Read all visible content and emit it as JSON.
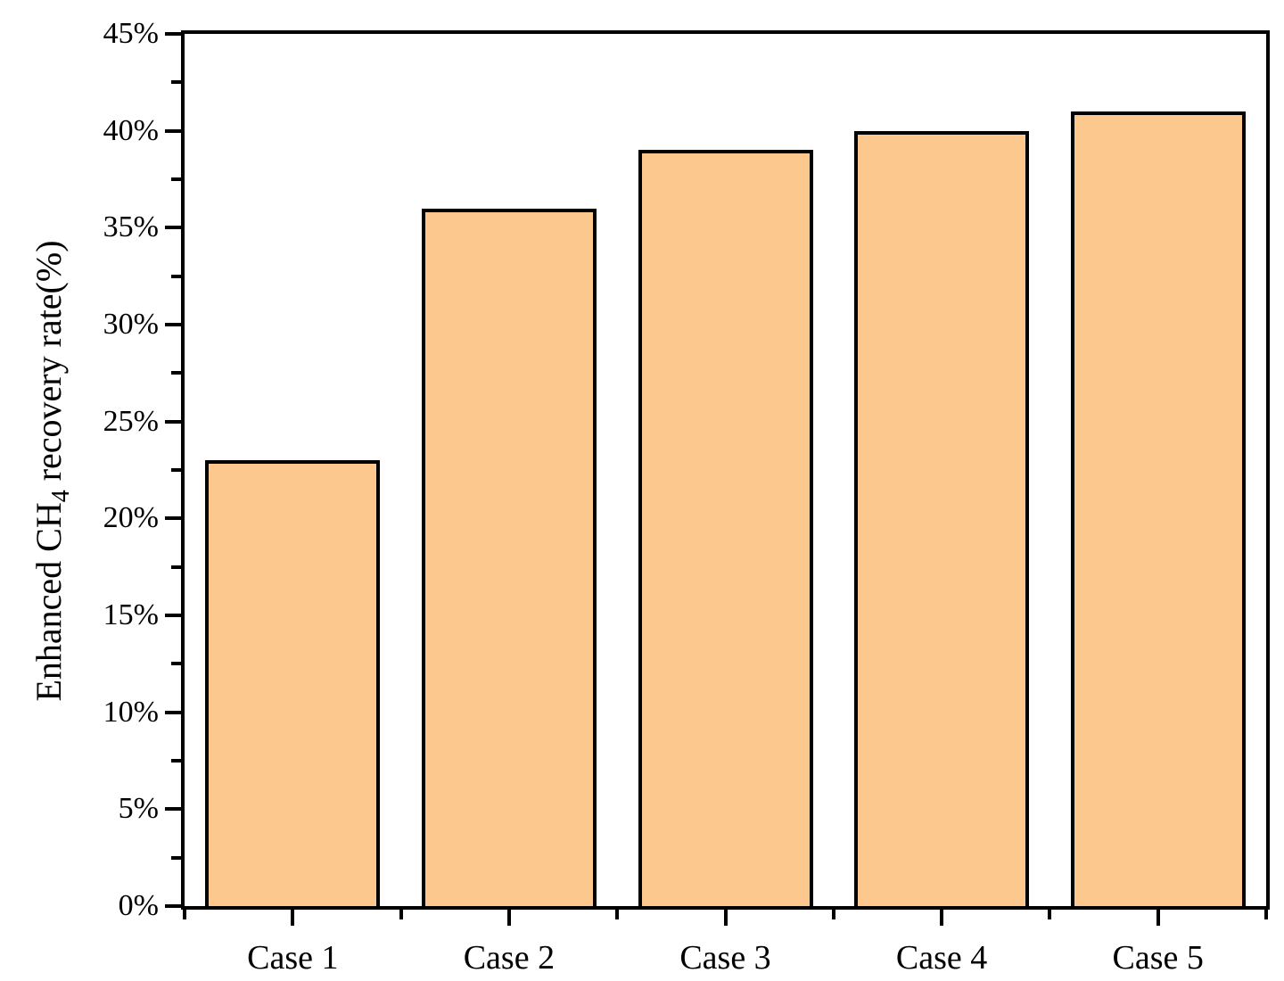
{
  "chart_data": {
    "type": "bar",
    "categories": [
      "Case 1",
      "Case 2",
      "Case 3",
      "Case 4",
      "Case 5"
    ],
    "values": [
      23,
      36,
      39,
      40,
      41
    ],
    "title": "",
    "xlabel": "",
    "ylabel": "Enhanced CH4 recovery rate(%)",
    "ylabel_parts": {
      "pre": "Enhanced CH",
      "sub": "4",
      "post": " recovery rate(%)"
    },
    "ylim": [
      0,
      45
    ],
    "y_major_step": 5,
    "y_minor_step": 2.5,
    "y_tick_labels": [
      "0%",
      "5%",
      "10%",
      "15%",
      "20%",
      "25%",
      "30%",
      "35%",
      "40%",
      "45%"
    ],
    "legend": null,
    "grid": false,
    "colors": {
      "bar_fill": "#FDC88E",
      "bar_border": "#000000",
      "axis": "#000000",
      "background": "#FFFFFF",
      "text": "#000000"
    }
  }
}
